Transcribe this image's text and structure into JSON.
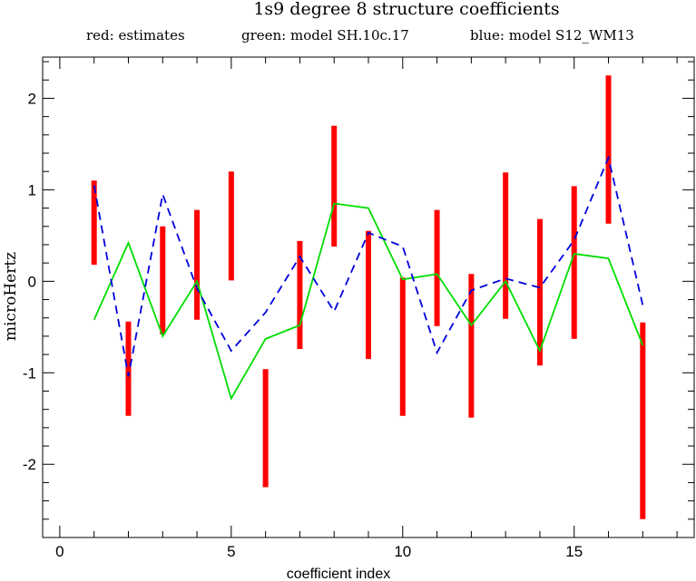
{
  "chart_data": {
    "type": "line",
    "title": "1s9 degree 8 structure coefficients",
    "xlabel": "coefficient index",
    "ylabel": "microHertz",
    "xlim": [
      -0.5,
      18.5
    ],
    "ylim": [
      -2.8,
      2.45
    ],
    "xticks": [
      0,
      5,
      10,
      15
    ],
    "yticks": [
      -2,
      -1,
      0,
      1,
      2
    ],
    "x_minor_step": 1,
    "y_minor_step": 0.2,
    "grid": false,
    "legend": [
      {
        "text": "red: estimates",
        "color": "#e00000"
      },
      {
        "text": "green: model SH.10c.17",
        "color": "#00cc00"
      },
      {
        "text": "blue: model S12_WM13",
        "color": "#0000cc"
      }
    ],
    "x": [
      1,
      2,
      3,
      4,
      5,
      6,
      7,
      8,
      9,
      10,
      11,
      12,
      13,
      14,
      15,
      16,
      17
    ],
    "series": [
      {
        "name": "estimates",
        "kind": "errorbar",
        "color": "#ff0000",
        "low": [
          0.18,
          -1.47,
          -0.58,
          -0.42,
          0.01,
          -2.25,
          -0.74,
          0.38,
          -0.85,
          -1.47,
          -0.49,
          -1.49,
          -0.41,
          -0.92,
          -0.63,
          0.63,
          -2.6
        ],
        "high": [
          1.1,
          -0.44,
          0.6,
          0.78,
          1.2,
          -0.96,
          0.44,
          1.7,
          0.55,
          0.04,
          0.78,
          0.08,
          1.19,
          0.68,
          1.04,
          2.25,
          -0.45
        ]
      },
      {
        "name": "model SH.10c.17",
        "kind": "line",
        "color": "#00dd00",
        "values": [
          -0.42,
          0.42,
          -0.6,
          0.0,
          -1.28,
          -0.63,
          -0.48,
          0.85,
          0.8,
          0.02,
          0.08,
          -0.48,
          0.0,
          -0.76,
          0.3,
          0.25,
          -0.7
        ]
      },
      {
        "name": "model S12_WM13",
        "kind": "dashed-line",
        "color": "#0000dd",
        "values": [
          1.05,
          -1.04,
          0.95,
          -0.08,
          -0.76,
          -0.34,
          0.27,
          -0.33,
          0.53,
          0.38,
          -0.78,
          -0.1,
          0.03,
          -0.07,
          0.45,
          1.35,
          -0.26
        ]
      }
    ]
  }
}
